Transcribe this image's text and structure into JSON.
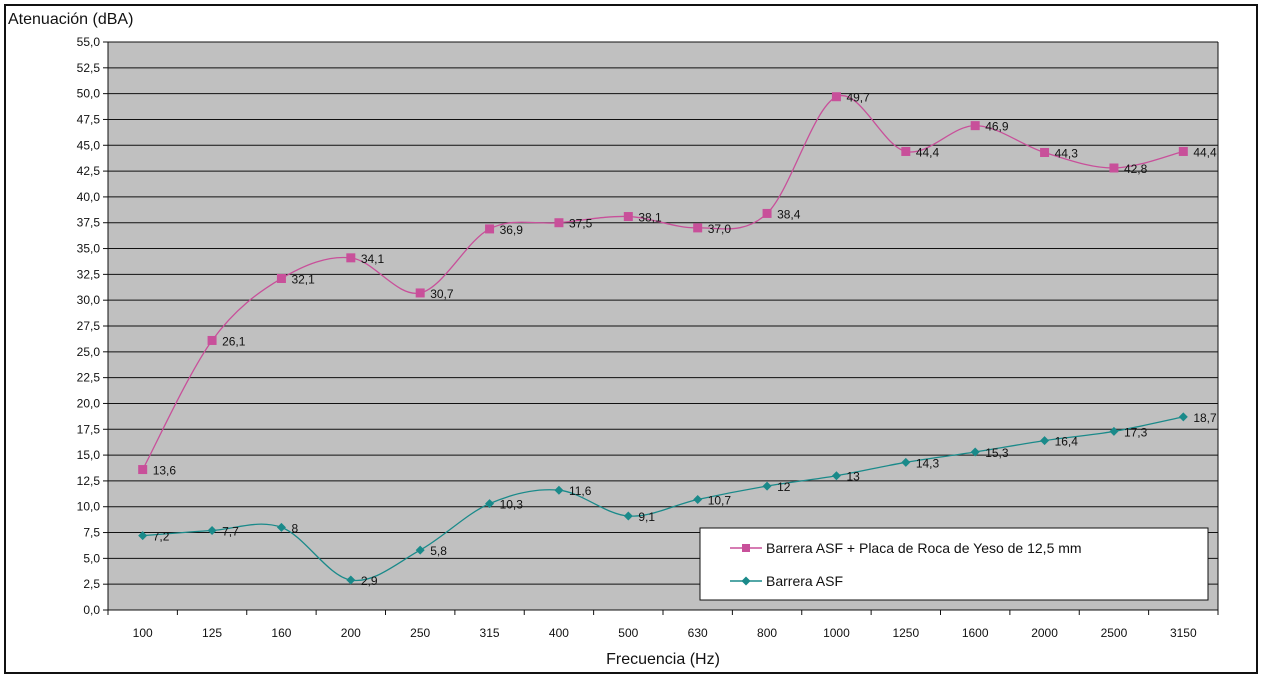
{
  "chart_data": {
    "type": "line",
    "ylabel": "Atenuación (dBA)",
    "xlabel": "Frecuencia (Hz)",
    "categories": [
      "100",
      "125",
      "160",
      "200",
      "250",
      "315",
      "400",
      "500",
      "630",
      "800",
      "1000",
      "1250",
      "1600",
      "2000",
      "2500",
      "3150"
    ],
    "ylim": [
      0,
      55
    ],
    "ytick_step": 2.5,
    "ytick_labels": [
      "0,0",
      "2,5",
      "5,0",
      "7,5",
      "10,0",
      "12,5",
      "15,0",
      "17,5",
      "20,0",
      "22,5",
      "25,0",
      "27,5",
      "30,0",
      "32,5",
      "35,0",
      "37,5",
      "40,0",
      "42,5",
      "45,0",
      "47,5",
      "50,0",
      "52,5",
      "55,0"
    ],
    "grid": true,
    "legend_position": "bottom-right",
    "series": [
      {
        "name": "Barrera ASF + Placa de Roca de Yeso de 12,5 mm",
        "color": "#c8509a",
        "marker": "square",
        "values": [
          13.6,
          26.1,
          32.1,
          34.1,
          30.7,
          36.9,
          37.5,
          38.1,
          37.0,
          38.4,
          49.7,
          44.4,
          46.9,
          44.3,
          42.8,
          44.4
        ],
        "labels": [
          "13,6",
          "26,1",
          "32,1",
          "34,1",
          "30,7",
          "36,9",
          "37,5",
          "38,1",
          "37,0",
          "38,4",
          "49,7",
          "44,4",
          "46,9",
          "44,3",
          "42,8",
          "44,4"
        ]
      },
      {
        "name": "Barrera ASF",
        "color": "#1a8a8a",
        "marker": "diamond",
        "values": [
          7.2,
          7.7,
          8,
          2.9,
          5.8,
          10.3,
          11.6,
          9.1,
          10.7,
          12,
          13,
          14.3,
          15.3,
          16.4,
          17.3,
          18.7
        ],
        "labels": [
          "7,2",
          "7,7",
          "8",
          "2,9",
          "5,8",
          "10,3",
          "11,6",
          "9,1",
          "10,7",
          "12",
          "13",
          "14,3",
          "15,3",
          "16,4",
          "17,3",
          "18,7"
        ]
      }
    ]
  },
  "colors": {
    "plot_background": "#c0c0c0",
    "gridline": "#111111"
  }
}
